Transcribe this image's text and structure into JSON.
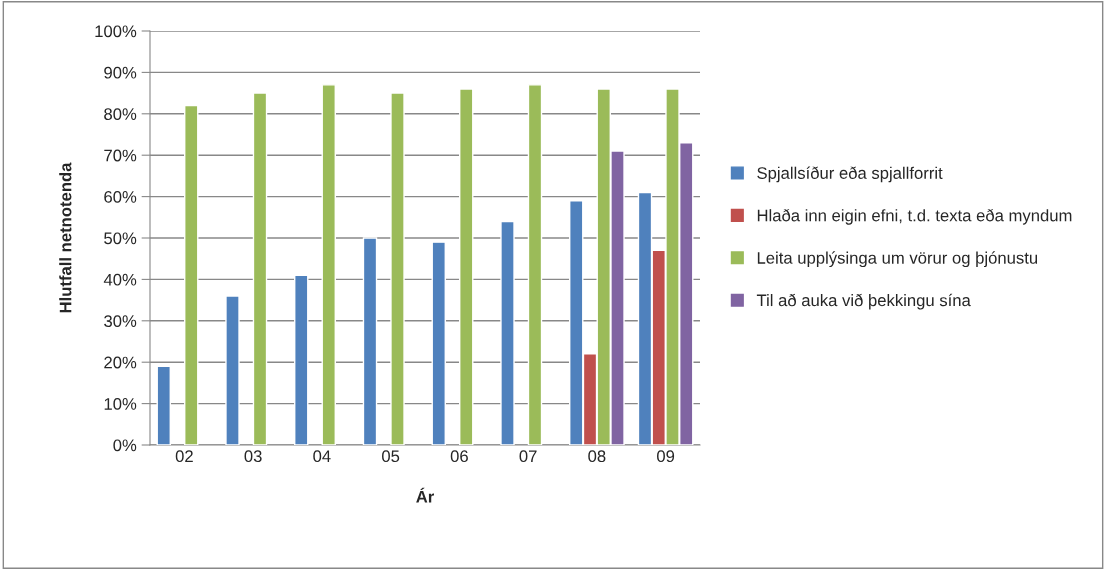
{
  "chart_data": {
    "type": "bar",
    "xlabel": "Ár",
    "ylabel": "Hlutfall netnotenda",
    "categories": [
      "02",
      "03",
      "04",
      "05",
      "06",
      "07",
      "08",
      "09"
    ],
    "series": [
      {
        "name": "Spjallsíður eða spjallforrit",
        "color": "#4f81bd",
        "values": [
          19,
          36,
          41,
          50,
          49,
          54,
          59,
          61
        ]
      },
      {
        "name": "Hlaða inn eigin efni, t.d. texta eða myndum",
        "color": "#c0504d",
        "values": [
          null,
          null,
          null,
          null,
          null,
          null,
          22,
          47
        ]
      },
      {
        "name": "Leita upplýsinga um vörur og þjónustu",
        "color": "#9bbb59",
        "values": [
          82,
          85,
          87,
          85,
          86,
          87,
          86,
          86
        ]
      },
      {
        "name": "Til að auka við þekkingu sína",
        "color": "#8064a2",
        "values": [
          null,
          null,
          null,
          null,
          null,
          null,
          71,
          73
        ]
      }
    ],
    "ylim": [
      0,
      100
    ],
    "yticks": [
      {
        "value": 0,
        "label": "0%"
      },
      {
        "value": 10,
        "label": "10%"
      },
      {
        "value": 20,
        "label": "20%"
      },
      {
        "value": 30,
        "label": "30%"
      },
      {
        "value": 40,
        "label": "40%"
      },
      {
        "value": 50,
        "label": "50%"
      },
      {
        "value": 60,
        "label": "60%"
      },
      {
        "value": 70,
        "label": "70%"
      },
      {
        "value": 80,
        "label": "80%"
      },
      {
        "value": 90,
        "label": "90%"
      },
      {
        "value": 100,
        "label": "100%"
      }
    ],
    "grid": "y",
    "legend": "right"
  }
}
